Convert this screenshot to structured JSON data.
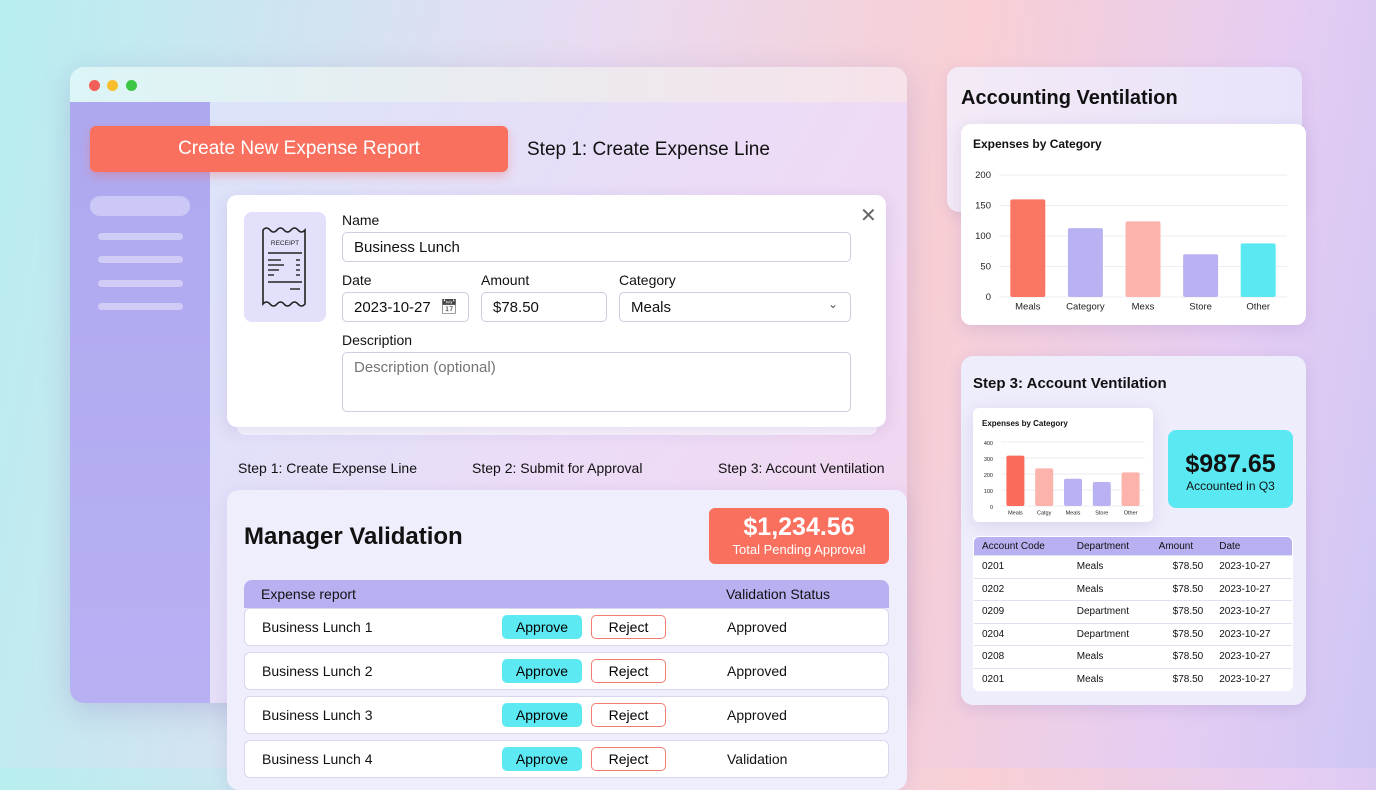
{
  "window": {
    "traffic_colors": [
      "#f25f58",
      "#f9be2e",
      "#3ec645"
    ]
  },
  "header": {
    "create_button": "Create New Expense Report",
    "step_title": "Step 1: Create Expense Line"
  },
  "form": {
    "receipt_label": "RECEIPT",
    "name_label": "Name",
    "name_value": "Business Lunch",
    "date_label": "Date",
    "date_value": "2023-10-27",
    "amount_label": "Amount",
    "amount_value": "$78.50",
    "category_label": "Category",
    "category_value": "Meals",
    "description_label": "Description",
    "description_placeholder": "Description (optional)"
  },
  "steps": [
    "Step 1: Create Expense Line",
    "Step 2: Submit for Approval",
    "Step 3: Account Ventilation"
  ],
  "manager": {
    "title": "Manager Validation",
    "pending_amount": "$1,234.56",
    "pending_label": "Total Pending Approval",
    "columns": {
      "report": "Expense report",
      "status": "Validation Status"
    },
    "approve_label": "Approve",
    "reject_label": "Reject",
    "rows": [
      {
        "name": "Business Lunch 1",
        "status": "Approved"
      },
      {
        "name": "Business Lunch 2",
        "status": "Approved"
      },
      {
        "name": "Business Lunch 3",
        "status": "Approved"
      },
      {
        "name": "Business Lunch 4",
        "status": "Validation"
      }
    ]
  },
  "accounting": {
    "title": "Accounting Ventilation"
  },
  "step3": {
    "title": "Step 3: Account Ventilation",
    "accounted_amount": "$987.65",
    "accounted_label": "Accounted in Q3",
    "columns": [
      "Account Code",
      "Department",
      "Amount",
      "Date"
    ],
    "rows": [
      [
        "0201",
        "Meals",
        "$78.50",
        "2023-10-27"
      ],
      [
        "0202",
        "Meals",
        "$78.50",
        "2023-10-27"
      ],
      [
        "0209",
        "Department",
        "$78.50",
        "2023-10-27"
      ],
      [
        "0204",
        "Department",
        "$78.50",
        "2023-10-27"
      ],
      [
        "0208",
        "Meals",
        "$78.50",
        "2023-10-27"
      ],
      [
        "0201",
        "Meals",
        "$78.50",
        "2023-10-27"
      ]
    ]
  },
  "chart_data": [
    {
      "type": "bar",
      "title": "Expenses by Category",
      "categories": [
        "Meals",
        "Category",
        "Mexs",
        "Store",
        "Other"
      ],
      "values": [
        160,
        113,
        124,
        70,
        88
      ],
      "ylim": [
        0,
        200
      ],
      "yticks": [
        0,
        50,
        100,
        150,
        200
      ],
      "grid": true,
      "colors": [
        "#fa7563",
        "#b9b2f2",
        "#fbb3ab",
        "#b9b2f2",
        "#5ae9f3"
      ]
    },
    {
      "type": "bar",
      "title": "Expenses by Category",
      "categories": [
        "Meals",
        "Catgy",
        "Meals",
        "Store",
        "Other"
      ],
      "values": [
        315,
        235,
        170,
        150,
        210
      ],
      "ylim": [
        0,
        400
      ],
      "yticks": [
        0,
        100,
        200,
        300,
        400
      ],
      "grid": true,
      "colors": [
        "#fa6b5c",
        "#fbb3ab",
        "#b9b2f2",
        "#b9b2f2",
        "#fbb3ab"
      ]
    }
  ]
}
